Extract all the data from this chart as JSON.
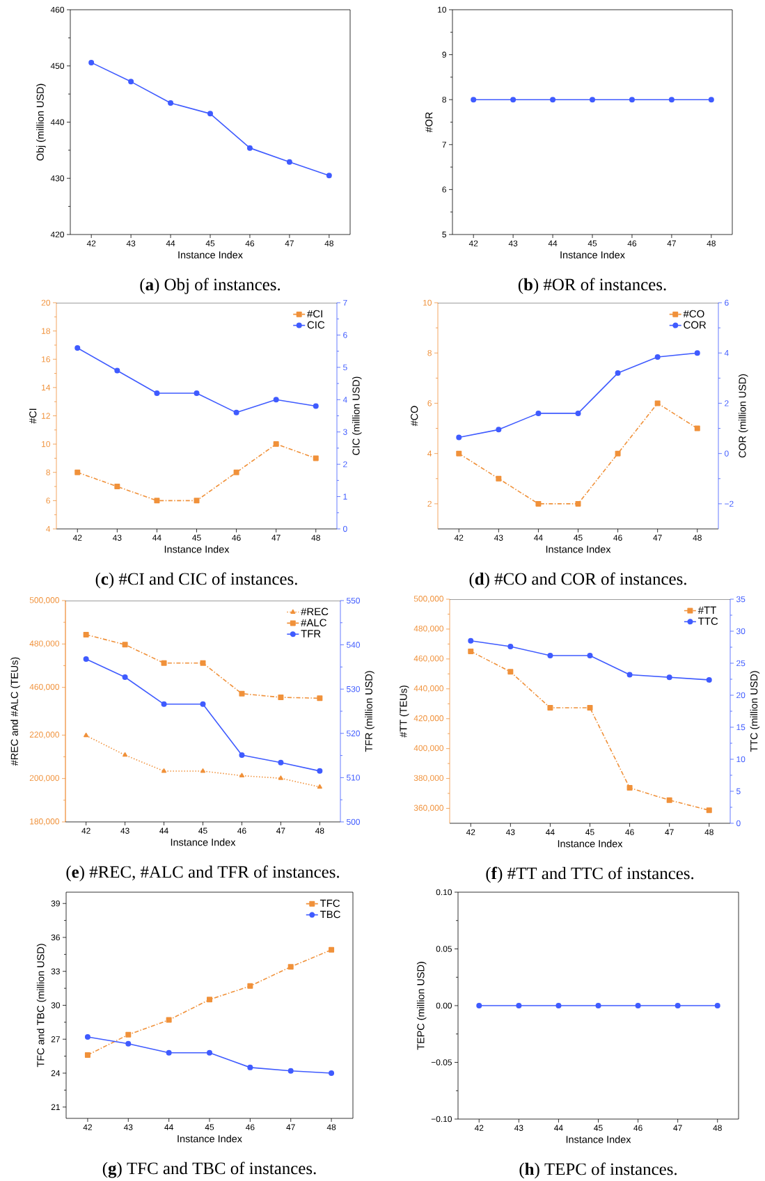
{
  "chart_data": [
    {
      "type": "line",
      "categories": [
        "42",
        "43",
        "44",
        "45",
        "46",
        "47",
        "48"
      ],
      "xlabel": "Instance Index",
      "ylabel": "Obj (million USD)",
      "ylim": [
        420,
        460
      ],
      "yticks": [
        420,
        430,
        440,
        450,
        460
      ],
      "annotations": [
        "(**a**) Obj of instances."
      ],
      "series": [
        {
          "color": "#3f5bff",
          "marker": "circle",
          "line_style": "solid",
          "values": [
            450.6,
            447.2,
            443.4,
            441.5,
            435.4,
            432.9,
            430.5
          ]
        }
      ]
    },
    {
      "type": "line",
      "categories": [
        "42",
        "43",
        "44",
        "45",
        "46",
        "47",
        "48"
      ],
      "xlabel": "Instance Index",
      "ylabel": "#OR",
      "ylim": [
        5,
        10
      ],
      "yticks": [
        5,
        6,
        7,
        8,
        9,
        10
      ],
      "annotations": [
        "(**b**) #OR of instances."
      ],
      "series": [
        {
          "color": "#3f5bff",
          "marker": "circle",
          "line_style": "solid",
          "values": [
            8,
            8,
            8,
            8,
            8,
            8,
            8
          ]
        }
      ]
    },
    {
      "type": "line",
      "categories": [
        "42",
        "43",
        "44",
        "45",
        "46",
        "47",
        "48"
      ],
      "xlabel": "Instance Index",
      "ylabel": "#CI",
      "y2label": "CIC (million USD)",
      "ylim": [
        4,
        20
      ],
      "yticks": [
        4,
        6,
        8,
        10,
        12,
        14,
        16,
        18,
        20
      ],
      "y2lim": [
        0,
        7
      ],
      "y2ticks": [
        0,
        1,
        2,
        3,
        4,
        5,
        6,
        7
      ],
      "legend": "top right",
      "annotations": [
        "(**c**) #CI and CIC of instances."
      ],
      "series": [
        {
          "name": "#CI",
          "color": "#f0913a",
          "marker": "square",
          "line_style": "dashed",
          "values": [
            8,
            7,
            6,
            6,
            8,
            10,
            9
          ]
        },
        {
          "name": "CIC",
          "color": "#3f5bff",
          "marker": "circle",
          "line_style": "solid",
          "axis": "y2",
          "values": [
            5.6,
            4.9,
            4.2,
            4.2,
            3.6,
            4.0,
            3.8
          ]
        }
      ]
    },
    {
      "type": "line",
      "categories": [
        "42",
        "43",
        "44",
        "45",
        "46",
        "47",
        "48"
      ],
      "xlabel": "Instance Index",
      "ylabel": "#CO",
      "y2label": "COR (million USD)",
      "ylim": [
        1,
        10
      ],
      "yticks": [
        2,
        4,
        6,
        8,
        10
      ],
      "y2lim": [
        -3,
        6
      ],
      "y2ticks": [
        {
          "value": -2,
          "label": "−2"
        },
        0,
        2,
        4,
        6
      ],
      "legend": "top right",
      "annotations": [
        "(**d**) #CO and COR of instances."
      ],
      "series": [
        {
          "name": "#CO",
          "color": "#f0913a",
          "marker": "square",
          "line_style": "dashed",
          "values": [
            4,
            3,
            2,
            2,
            4,
            6,
            5
          ]
        },
        {
          "name": "COR",
          "color": "#3f5bff",
          "marker": "circle",
          "line_style": "solid",
          "axis": "y2",
          "values": [
            0.64,
            0.95,
            1.6,
            1.6,
            3.2,
            3.84,
            4.0
          ]
        }
      ]
    },
    {
      "type": "line",
      "categories": [
        "42",
        "43",
        "44",
        "45",
        "46",
        "47",
        "48"
      ],
      "xlabel": "Instance Index",
      "ylabel": "#REC and #ALC (TEUs)",
      "y2label": "TFR (million USD)",
      "ylim": [
        180000,
        282000
      ],
      "yticks": [
        {
          "value": 180000,
          "label": "180,000"
        },
        {
          "value": 200000,
          "label": "200,000"
        },
        {
          "value": 220000,
          "label": "220,000"
        }
      ],
      "y3lim": [
        398000,
        500000
      ],
      "y3ticks": [
        {
          "value": 460000,
          "label": "460,000"
        },
        {
          "value": 480000,
          "label": "480,000"
        },
        {
          "value": 500000,
          "label": "500,000"
        }
      ],
      "y2lim": [
        500,
        550
      ],
      "y2ticks": [
        500,
        510,
        520,
        530,
        540,
        550
      ],
      "legend": "top right",
      "annotations": [
        "(**e**) #REC, #ALC and TFR of instances."
      ],
      "series": [
        {
          "name": "#REC",
          "color": "#f0913a",
          "marker": "triangle",
          "line_style": "dotted",
          "values": [
            219800,
            210800,
            203400,
            203400,
            201300,
            200100,
            196100
          ]
        },
        {
          "name": "#ALC",
          "color": "#f0913a",
          "marker": "square",
          "line_style": "dashed",
          "axis": "y3",
          "values": [
            484300,
            479700,
            471200,
            471200,
            457100,
            455400,
            455000
          ]
        },
        {
          "name": "TFR",
          "color": "#3f5bff",
          "marker": "circle",
          "line_style": "solid",
          "axis": "y2",
          "values": [
            536.8,
            532.7,
            526.6,
            526.6,
            515.1,
            513.4,
            511.5
          ]
        }
      ]
    },
    {
      "type": "line",
      "categories": [
        "42",
        "43",
        "44",
        "45",
        "46",
        "47",
        "48"
      ],
      "xlabel": "Instance Index",
      "ylabel": "#TT (TEUs)",
      "y2label": "TTC (million USD)",
      "ylim": [
        350000,
        500000
      ],
      "yticks": [
        {
          "value": 360000,
          "label": "360,000"
        },
        {
          "value": 380000,
          "label": "380,000"
        },
        {
          "value": 400000,
          "label": "400,000"
        },
        {
          "value": 420000,
          "label": "420,000"
        },
        {
          "value": 440000,
          "label": "440,000"
        },
        {
          "value": 460000,
          "label": "460,000"
        },
        {
          "value": 480000,
          "label": "480,000"
        },
        {
          "value": 500000,
          "label": "500,000"
        }
      ],
      "y2lim": [
        0,
        35
      ],
      "y2ticks": [
        0,
        5,
        10,
        15,
        20,
        25,
        30,
        35
      ],
      "legend": "top right",
      "annotations": [
        "(**f**) #TT and TTC of instances."
      ],
      "series": [
        {
          "name": "#TT",
          "color": "#f0913a",
          "marker": "square",
          "line_style": "dashed",
          "values": [
            465100,
            451400,
            427300,
            427300,
            373700,
            365500,
            358700
          ]
        },
        {
          "name": "TTC",
          "color": "#3f5bff",
          "marker": "circle",
          "line_style": "solid",
          "axis": "y2",
          "values": [
            28.5,
            27.6,
            26.2,
            26.2,
            23.2,
            22.8,
            22.4
          ]
        }
      ]
    },
    {
      "type": "line",
      "categories": [
        "42",
        "43",
        "44",
        "45",
        "46",
        "47",
        "48"
      ],
      "xlabel": "Instance Index",
      "ylabel": "TFC and TBC (million USD)",
      "ylim": [
        20,
        40
      ],
      "yticks": [
        21,
        24,
        27,
        30,
        33,
        36,
        39
      ],
      "legend": "top right",
      "annotations": [
        "(**g**) TFC and TBC of instances."
      ],
      "series": [
        {
          "name": "TFC",
          "color": "#f0913a",
          "marker": "square",
          "line_style": "dashed",
          "values": [
            25.6,
            27.4,
            28.7,
            30.5,
            31.7,
            33.4,
            34.9
          ]
        },
        {
          "name": "TBC",
          "color": "#3f5bff",
          "marker": "circle",
          "line_style": "solid",
          "values": [
            27.2,
            26.6,
            25.8,
            25.8,
            24.5,
            24.2,
            24.0
          ]
        }
      ]
    },
    {
      "type": "line",
      "categories": [
        "42",
        "43",
        "44",
        "45",
        "46",
        "47",
        "48"
      ],
      "xlabel": "Instance Index",
      "ylabel": "TEPC (million USD)",
      "ylim": [
        -0.1,
        0.1
      ],
      "yticks": [
        {
          "value": -0.1,
          "label": "−0.10"
        },
        {
          "value": -0.05,
          "label": "−0.05"
        },
        {
          "value": 0,
          "label": "0.00"
        },
        {
          "value": 0.05,
          "label": "0.05"
        },
        {
          "value": 0.1,
          "label": "0.10"
        }
      ],
      "annotations": [
        "(**h**) TEPC of instances."
      ],
      "series": [
        {
          "color": "#3f5bff",
          "marker": "circle",
          "line_style": "solid",
          "values": [
            0,
            0,
            0,
            0,
            0,
            0,
            0
          ]
        }
      ]
    }
  ]
}
